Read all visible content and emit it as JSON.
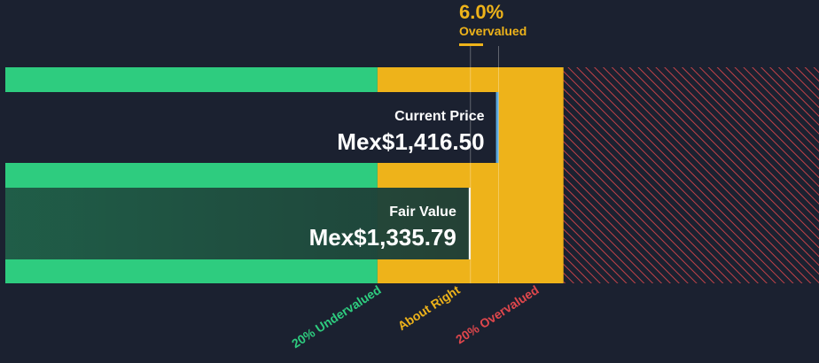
{
  "chart_data": {
    "type": "bar",
    "currency": "Mex$",
    "current_price": {
      "label": "Current Price",
      "value": 1416.5,
      "display": "Mex$1,416.50"
    },
    "fair_value": {
      "label": "Fair Value",
      "value": 1335.79,
      "display": "Mex$1,335.79"
    },
    "difference": {
      "percent_text": "6.0%",
      "status_text": "Overvalued"
    },
    "zones": [
      {
        "name": "20% Undervalued",
        "color": "#2ecc7f",
        "from": 0,
        "to": 1068.63
      },
      {
        "name": "About Right",
        "color": "#eeb31a",
        "from": 1068.63,
        "to": 1602.95
      },
      {
        "name": "20% Overvalued",
        "color": "#e0474c",
        "from": 1602.95,
        "to": 2336.4
      }
    ],
    "colors": {
      "background": "#1b2130",
      "undervalued": "#2ecc7f",
      "about_right": "#eeb31a",
      "overvalued": "#e0474c",
      "status_accent": "#eeb31a"
    }
  }
}
